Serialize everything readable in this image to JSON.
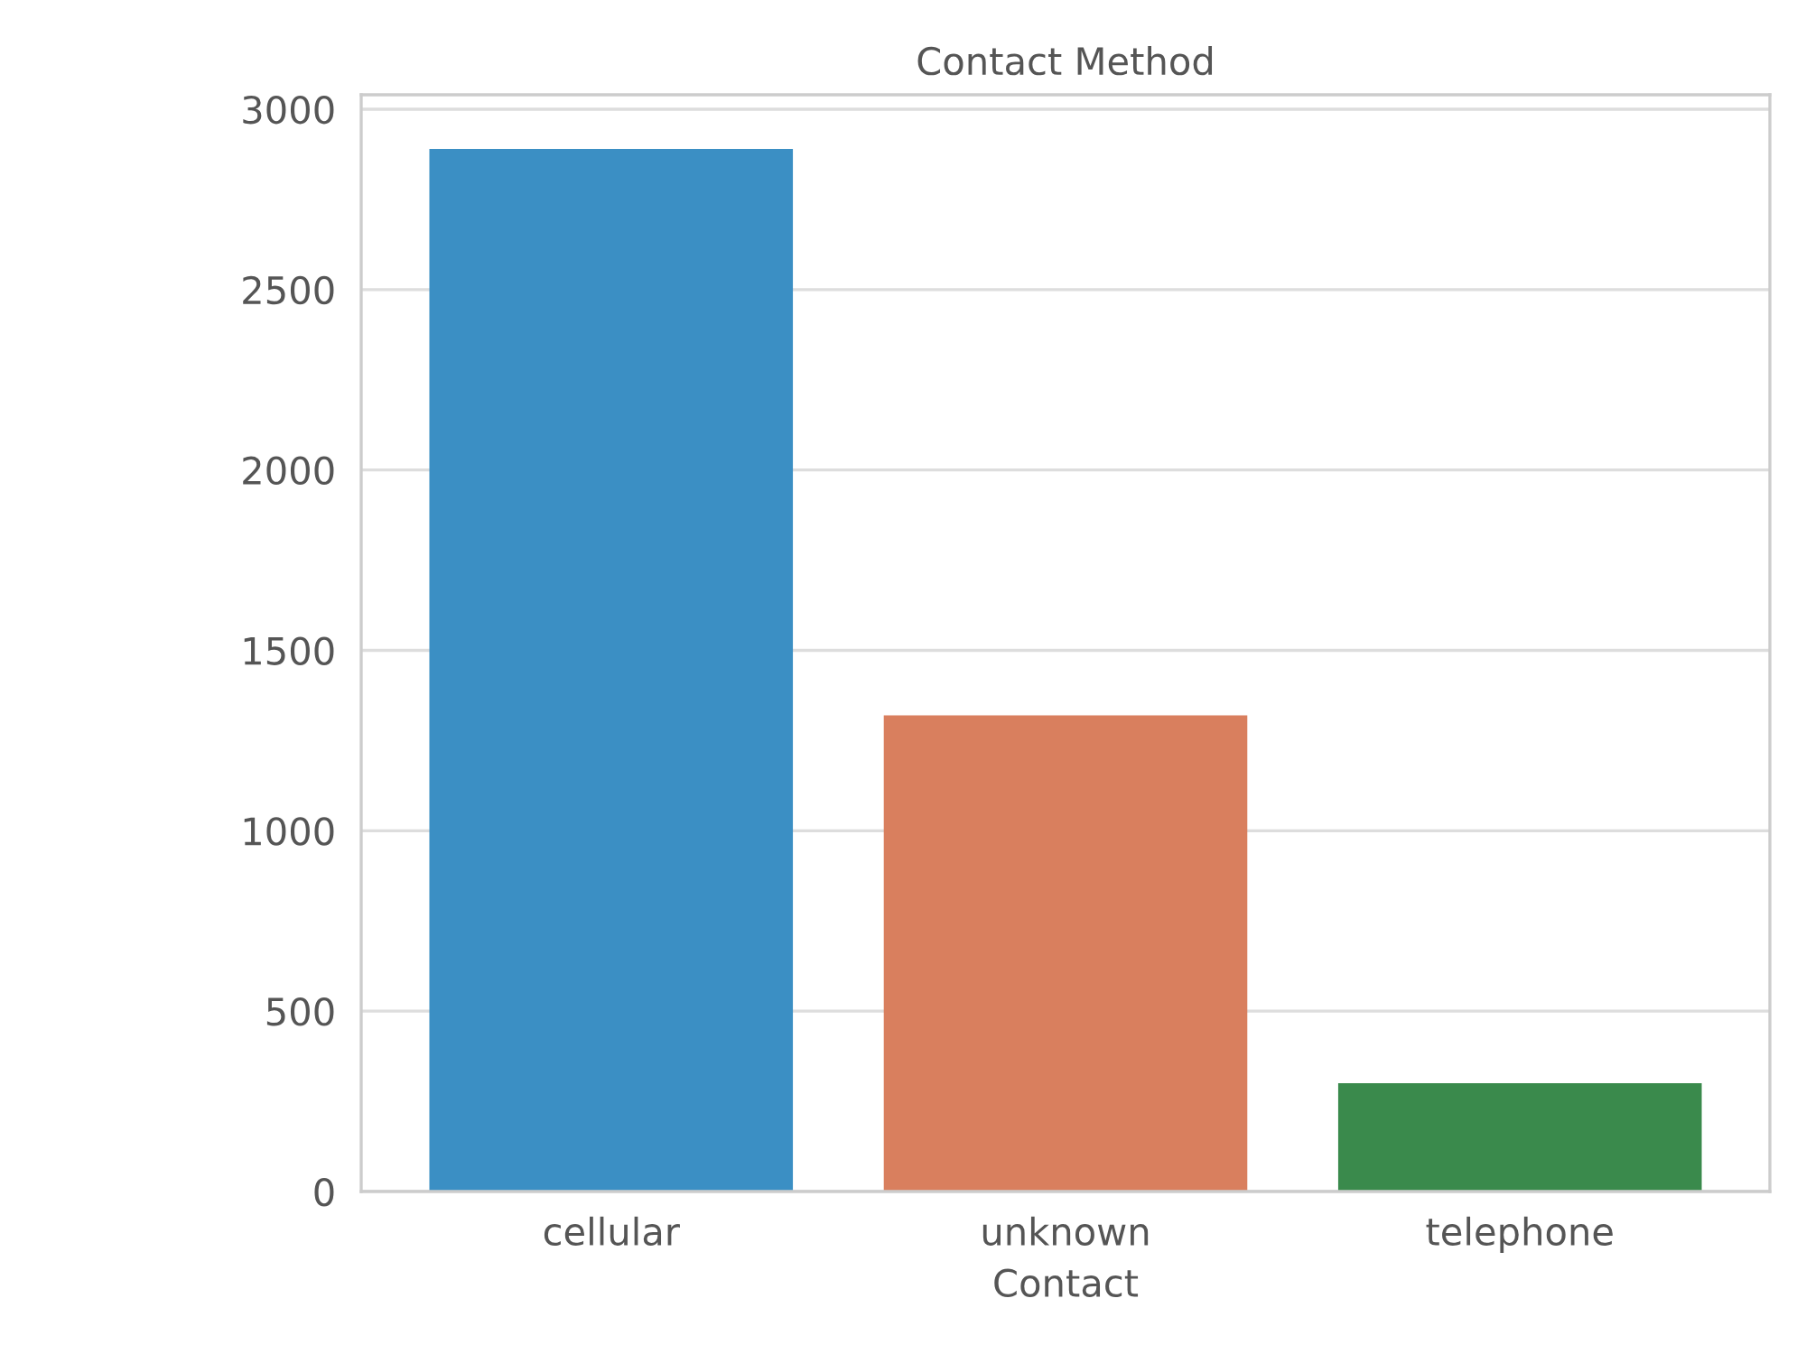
{
  "chart_data": {
    "type": "bar",
    "title": "Contact Method",
    "xlabel": "Contact",
    "categories": [
      "cellular",
      "unknown",
      "telephone"
    ],
    "values": [
      2890,
      1320,
      300
    ],
    "colors": [
      "#3b8fc4",
      "#d97f5e",
      "#3a8a4c"
    ],
    "ylim": [
      0,
      3040
    ],
    "yticks": [
      0,
      500,
      1000,
      1500,
      2000,
      2500,
      3000
    ],
    "grid": "y"
  }
}
